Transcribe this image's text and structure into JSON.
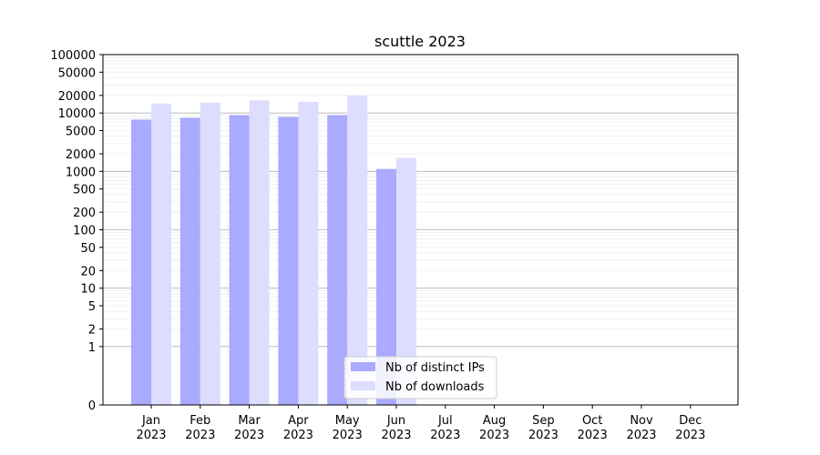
{
  "chart_data": {
    "type": "bar",
    "title": "scuttle 2023",
    "xlabel": "",
    "ylabel": "",
    "y_scale": "symlog",
    "ylim": [
      0,
      100000
    ],
    "y_ticks": [
      0,
      1,
      2,
      5,
      10,
      20,
      50,
      100,
      200,
      500,
      1000,
      2000,
      5000,
      10000,
      20000,
      50000,
      100000
    ],
    "y_tick_labels": [
      "0",
      "1",
      "2",
      "5",
      "10",
      "20",
      "50",
      "100",
      "200",
      "500",
      "1000",
      "2000",
      "5000",
      "10000",
      "20000",
      "50000",
      "100000"
    ],
    "grid": true,
    "legend_position": "bottom-center",
    "categories": [
      [
        "Jan",
        "2023"
      ],
      [
        "Feb",
        "2023"
      ],
      [
        "Mar",
        "2023"
      ],
      [
        "Apr",
        "2023"
      ],
      [
        "May",
        "2023"
      ],
      [
        "Jun",
        "2023"
      ],
      [
        "Jul",
        "2023"
      ],
      [
        "Aug",
        "2023"
      ],
      [
        "Sep",
        "2023"
      ],
      [
        "Oct",
        "2023"
      ],
      [
        "Nov",
        "2023"
      ],
      [
        "Dec",
        "2023"
      ]
    ],
    "series": [
      {
        "name": "Nb of distinct IPs",
        "color": "#aaaaff",
        "values": [
          7700,
          8300,
          9200,
          8600,
          9200,
          1100,
          0,
          0,
          0,
          0,
          0,
          0
        ]
      },
      {
        "name": "Nb of downloads",
        "color": "#ddddff",
        "values": [
          14500,
          15000,
          16500,
          15500,
          20000,
          1700,
          0,
          0,
          0,
          0,
          0,
          0
        ]
      }
    ]
  }
}
